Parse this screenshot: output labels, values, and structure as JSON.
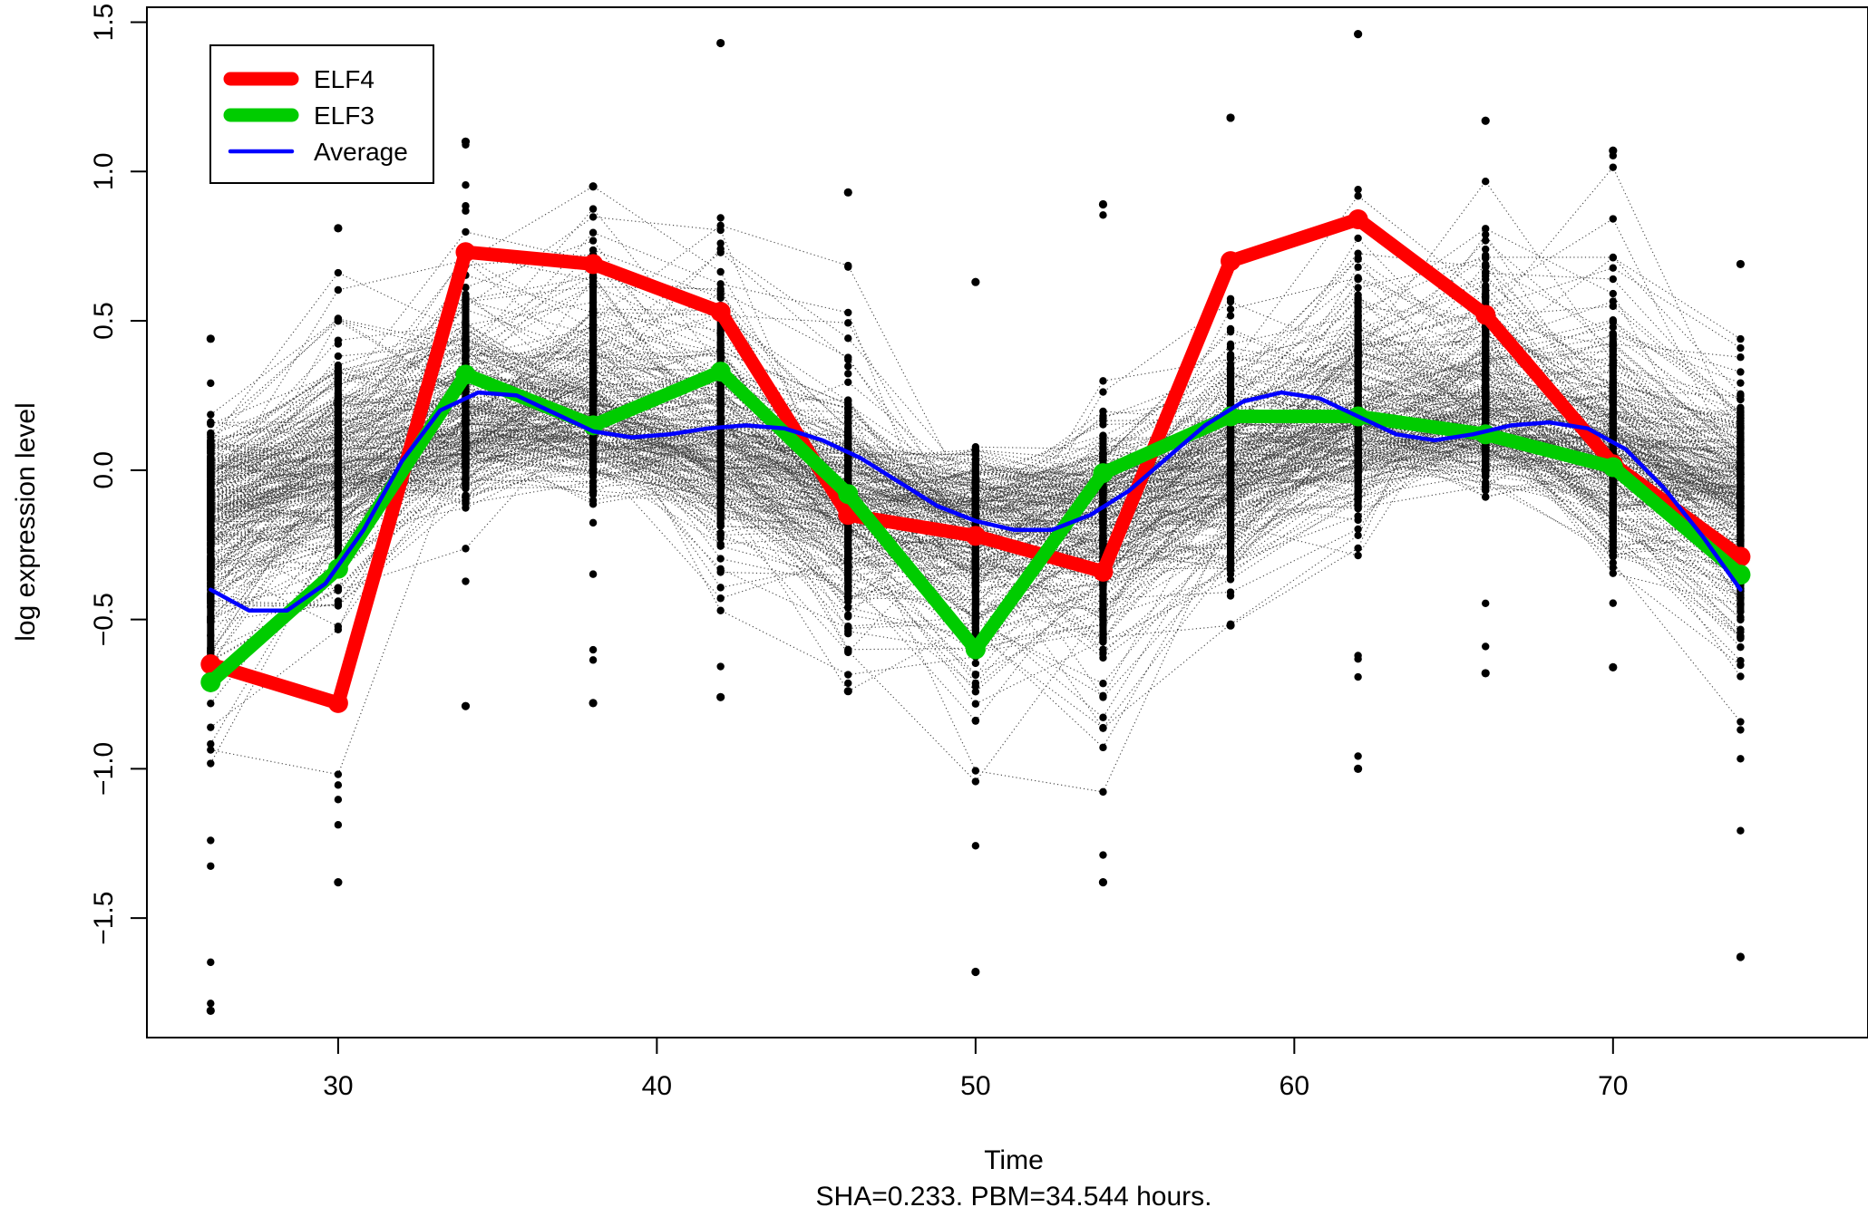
{
  "chart_data": {
    "type": "line",
    "title": "",
    "xlabel": "Time",
    "subtitle": "SHA=0.233. PBM=34.544 hours.",
    "ylabel": "log expression level",
    "xlim": [
      24,
      78
    ],
    "ylim": [
      -1.9,
      1.55
    ],
    "x_ticks": [
      "30",
      "40",
      "50",
      "60",
      "70"
    ],
    "y_ticks": [
      "-1.5",
      "-1.0",
      "-0.5",
      "0.0",
      "0.5",
      "1.0",
      "1.5"
    ],
    "grid": false,
    "legend_position": "top-left",
    "time_points": [
      26,
      30,
      34,
      38,
      42,
      46,
      50,
      54,
      58,
      62,
      66,
      70,
      74
    ],
    "series": [
      {
        "name": "ELF4",
        "color": "#ff0000",
        "x": [
          26,
          30,
          34,
          38,
          42,
          46,
          50,
          54,
          58,
          62,
          66,
          70,
          74
        ],
        "values": [
          -0.65,
          -0.78,
          0.73,
          0.69,
          0.53,
          -0.15,
          -0.22,
          -0.34,
          0.7,
          0.84,
          0.52,
          0.02,
          -0.29
        ]
      },
      {
        "name": "ELF3",
        "color": "#00cc00",
        "x": [
          26,
          30,
          34,
          38,
          42,
          46,
          50,
          54,
          58,
          62,
          66,
          70,
          74
        ],
        "values": [
          -0.71,
          -0.33,
          0.32,
          0.15,
          0.33,
          -0.08,
          -0.6,
          -0.01,
          0.18,
          0.18,
          0.12,
          0.01,
          -0.35
        ]
      },
      {
        "name": "Average",
        "color": "#0000ff",
        "x": [
          26,
          27.2,
          28.4,
          29.6,
          30.8,
          32,
          33.2,
          34.4,
          35.6,
          36.8,
          38,
          39.2,
          40.4,
          41.6,
          42.8,
          44,
          45.2,
          46.4,
          47.6,
          48.8,
          50,
          51.2,
          52.4,
          53.6,
          54.8,
          56,
          57.2,
          58.4,
          59.6,
          60.8,
          62,
          63.2,
          64.4,
          65.6,
          66.8,
          68,
          69.2,
          70.4,
          71.6,
          72.8,
          74
        ],
        "values": [
          -0.4,
          -0.47,
          -0.47,
          -0.38,
          -0.2,
          0.03,
          0.2,
          0.26,
          0.25,
          0.19,
          0.13,
          0.11,
          0.12,
          0.14,
          0.15,
          0.14,
          0.1,
          0.04,
          -0.04,
          -0.12,
          -0.17,
          -0.2,
          -0.2,
          -0.15,
          -0.07,
          0.04,
          0.15,
          0.23,
          0.26,
          0.24,
          0.18,
          0.12,
          0.1,
          0.12,
          0.15,
          0.16,
          0.14,
          0.07,
          -0.06,
          -0.22,
          -0.4
        ]
      }
    ],
    "background_profiles": {
      "description_hidden": true,
      "marker_color": "#000000",
      "point_extremes": {
        "26": [
          -1.81,
          0.44
        ],
        "30": [
          -1.38,
          0.81
        ],
        "34": [
          -0.79,
          1.1
        ],
        "38": [
          -0.78,
          0.95
        ],
        "42": [
          -0.76,
          1.43
        ],
        "46": [
          -0.74,
          0.93
        ],
        "50": [
          -1.68,
          0.63
        ],
        "54": [
          -1.38,
          0.89
        ],
        "58": [
          -0.52,
          1.18
        ],
        "62": [
          -1.0,
          1.46
        ],
        "66": [
          -0.68,
          1.17
        ],
        "70": [
          -0.66,
          1.07
        ],
        "74": [
          -1.63,
          0.69
        ]
      }
    }
  }
}
